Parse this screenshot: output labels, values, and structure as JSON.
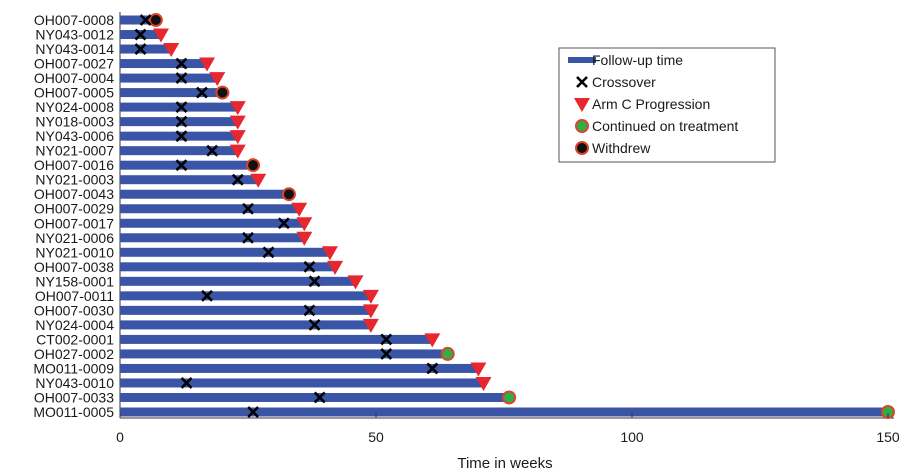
{
  "chart_data": {
    "type": "swimmer",
    "xlabel": "Time in weeks",
    "xlim": [
      0,
      150
    ],
    "xticks": [
      0,
      50,
      100,
      150
    ],
    "legend": {
      "placement": "top-right",
      "entries": [
        {
          "key": "bar",
          "label": "Follow-up time"
        },
        {
          "key": "crossover",
          "label": "Crossover"
        },
        {
          "key": "progression",
          "label": "Arm C Progression"
        },
        {
          "key": "continued",
          "label": "Continued on treatment"
        },
        {
          "key": "withdrew",
          "label": "Withdrew"
        }
      ]
    },
    "colors": {
      "bar": "#3a55a6",
      "progression": "#e8262d",
      "continued": "#2fae4a",
      "withdrew": "#111111",
      "ring": "#d9462b",
      "cross": "#000000"
    },
    "patients": [
      {
        "id": "OH007-0008",
        "followup": 7,
        "crossover": 5,
        "end": "withdrew"
      },
      {
        "id": "NY043-0012",
        "followup": 8,
        "crossover": 4,
        "end": "progression"
      },
      {
        "id": "NY043-0014",
        "followup": 10,
        "crossover": 4,
        "end": "progression"
      },
      {
        "id": "OH007-0027",
        "followup": 17,
        "crossover": 12,
        "end": "progression"
      },
      {
        "id": "OH007-0004",
        "followup": 19,
        "crossover": 12,
        "end": "progression"
      },
      {
        "id": "OH007-0005",
        "followup": 20,
        "crossover": 16,
        "end": "withdrew"
      },
      {
        "id": "NY024-0008",
        "followup": 23,
        "crossover": 12,
        "end": "progression"
      },
      {
        "id": "NY018-0003",
        "followup": 23,
        "crossover": 12,
        "end": "progression"
      },
      {
        "id": "NY043-0006",
        "followup": 23,
        "crossover": 12,
        "end": "progression"
      },
      {
        "id": "NY021-0007",
        "followup": 23,
        "crossover": 18,
        "end": "progression"
      },
      {
        "id": "OH007-0016",
        "followup": 26,
        "crossover": 12,
        "end": "withdrew"
      },
      {
        "id": "NY021-0003",
        "followup": 27,
        "crossover": 23,
        "end": "progression"
      },
      {
        "id": "OH007-0043",
        "followup": 33,
        "crossover": null,
        "end": "withdrew"
      },
      {
        "id": "OH007-0029",
        "followup": 35,
        "crossover": 25,
        "end": "progression"
      },
      {
        "id": "OH007-0017",
        "followup": 36,
        "crossover": 32,
        "end": "progression"
      },
      {
        "id": "NY021-0006",
        "followup": 36,
        "crossover": 25,
        "end": "progression"
      },
      {
        "id": "NY021-0010",
        "followup": 41,
        "crossover": 29,
        "end": "progression"
      },
      {
        "id": "OH007-0038",
        "followup": 42,
        "crossover": 37,
        "end": "progression"
      },
      {
        "id": "NY158-0001",
        "followup": 46,
        "crossover": 38,
        "end": "progression"
      },
      {
        "id": "OH007-0011",
        "followup": 49,
        "crossover": 17,
        "end": "progression"
      },
      {
        "id": "OH007-0030",
        "followup": 49,
        "crossover": 37,
        "end": "progression"
      },
      {
        "id": "NY024-0004",
        "followup": 49,
        "crossover": 38,
        "end": "progression"
      },
      {
        "id": "CT002-0001",
        "followup": 61,
        "crossover": 52,
        "end": "progression"
      },
      {
        "id": "OH027-0002",
        "followup": 64,
        "crossover": 52,
        "end": "continued"
      },
      {
        "id": "MO011-0009",
        "followup": 70,
        "crossover": 61,
        "end": "progression"
      },
      {
        "id": "NY043-0010",
        "followup": 71,
        "crossover": 13,
        "end": "progression"
      },
      {
        "id": "OH007-0033",
        "followup": 76,
        "crossover": 39,
        "end": "continued"
      },
      {
        "id": "MO011-0005",
        "followup": 150,
        "crossover": 26,
        "end": "continued"
      }
    ]
  }
}
